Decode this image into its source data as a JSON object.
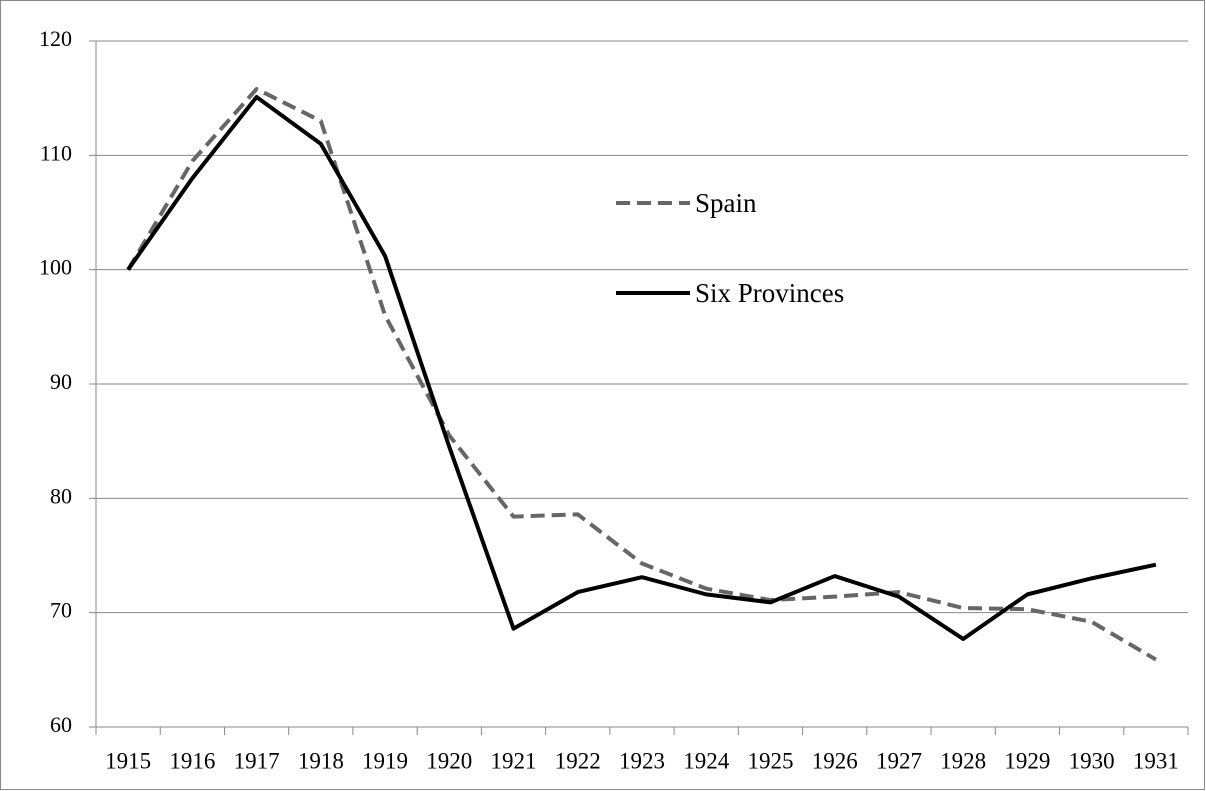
{
  "chart_data": {
    "type": "line",
    "categories": [
      "1915",
      "1916",
      "1917",
      "1918",
      "1919",
      "1920",
      "1921",
      "1922",
      "1923",
      "1924",
      "1925",
      "1926",
      "1927",
      "1928",
      "1929",
      "1930",
      "1931"
    ],
    "series": [
      {
        "name": "Spain",
        "color": "#666666",
        "dash": true,
        "values": [
          100,
          109.5,
          115.8,
          113.0,
          96.0,
          85.5,
          78.4,
          78.6,
          74.3,
          72.1,
          71.1,
          71.4,
          71.8,
          70.4,
          70.3,
          69.2,
          65.9
        ]
      },
      {
        "name": "Six Provinces",
        "color": "#000000",
        "dash": false,
        "values": [
          100,
          108,
          115.1,
          111.0,
          101.2,
          84.5,
          68.6,
          71.8,
          73.1,
          71.6,
          70.9,
          73.2,
          71.4,
          67.7,
          71.6,
          73.0,
          74.2
        ]
      }
    ],
    "ylim": [
      60,
      120
    ],
    "yticks": [
      60,
      70,
      80,
      90,
      100,
      110,
      120
    ],
    "grid": true
  }
}
